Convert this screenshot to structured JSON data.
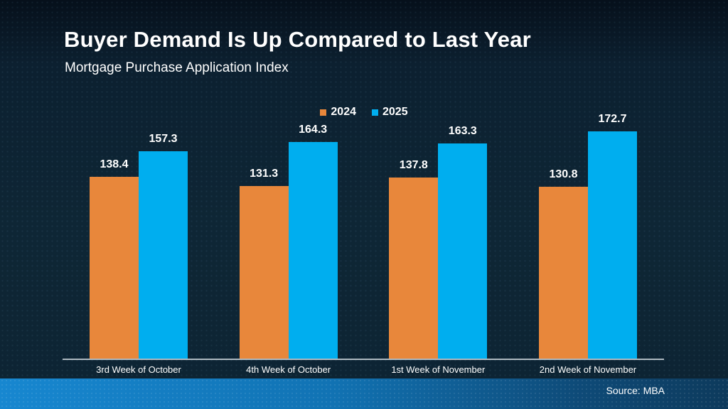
{
  "slide": {
    "title": "Buyer Demand Is Up Compared to Last Year",
    "subtitle": "Mortgage Purchase Application Index",
    "source": "Source: MBA"
  },
  "colors": {
    "series_2024": "#E8873B",
    "series_2025": "#00AEEF",
    "axis_line": "#AEB9C1",
    "background": "#0D2433",
    "footer_left": "#1787D0",
    "footer_right": "#0D3A5C",
    "text": "#FFFFFF"
  },
  "chart_data": {
    "type": "bar",
    "title": "Buyer Demand Is Up Compared to Last Year",
    "subtitle": "Mortgage Purchase Application Index",
    "categories": [
      "3rd Week of October",
      "4th Week of October",
      "1st Week of November",
      "2nd Week of November"
    ],
    "series": [
      {
        "name": "2024",
        "color": "#E8873B",
        "values": [
          138.4,
          131.3,
          137.8,
          130.8
        ]
      },
      {
        "name": "2025",
        "color": "#00AEEF",
        "values": [
          157.3,
          164.3,
          163.3,
          172.7
        ]
      }
    ],
    "value_labels": true,
    "ylim": [
      0,
      180
    ],
    "grid": false,
    "legend_position": "top-center",
    "source": "Source: MBA"
  }
}
